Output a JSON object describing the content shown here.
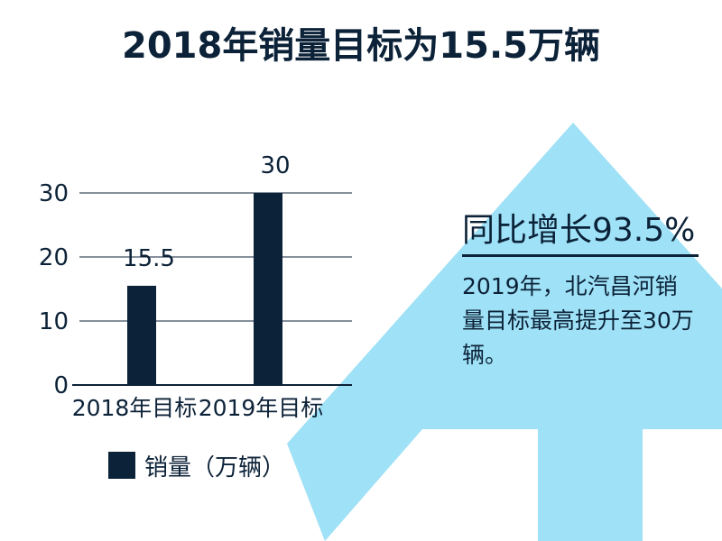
{
  "title": "2018年销量目标为15.5万辆",
  "callout": {
    "headline": "同比增长93.5%",
    "body": "2019年，北汽昌河销量目标最高提升至30万辆。"
  },
  "colors": {
    "bar": "#0c2238",
    "text": "#0c2238",
    "arrow": "#9fe1f6",
    "grid": "#0c2238"
  },
  "chart_data": {
    "type": "bar",
    "categories": [
      "2018年目标",
      "2019年目标"
    ],
    "series": [
      {
        "name": "销量（万辆）",
        "values": [
          15.5,
          30
        ]
      }
    ],
    "data_labels": [
      "15.5",
      "30"
    ],
    "yticks": [
      0,
      10,
      20,
      30
    ],
    "ylim": [
      0,
      30
    ],
    "grid": true,
    "legend": "bottom-left"
  }
}
